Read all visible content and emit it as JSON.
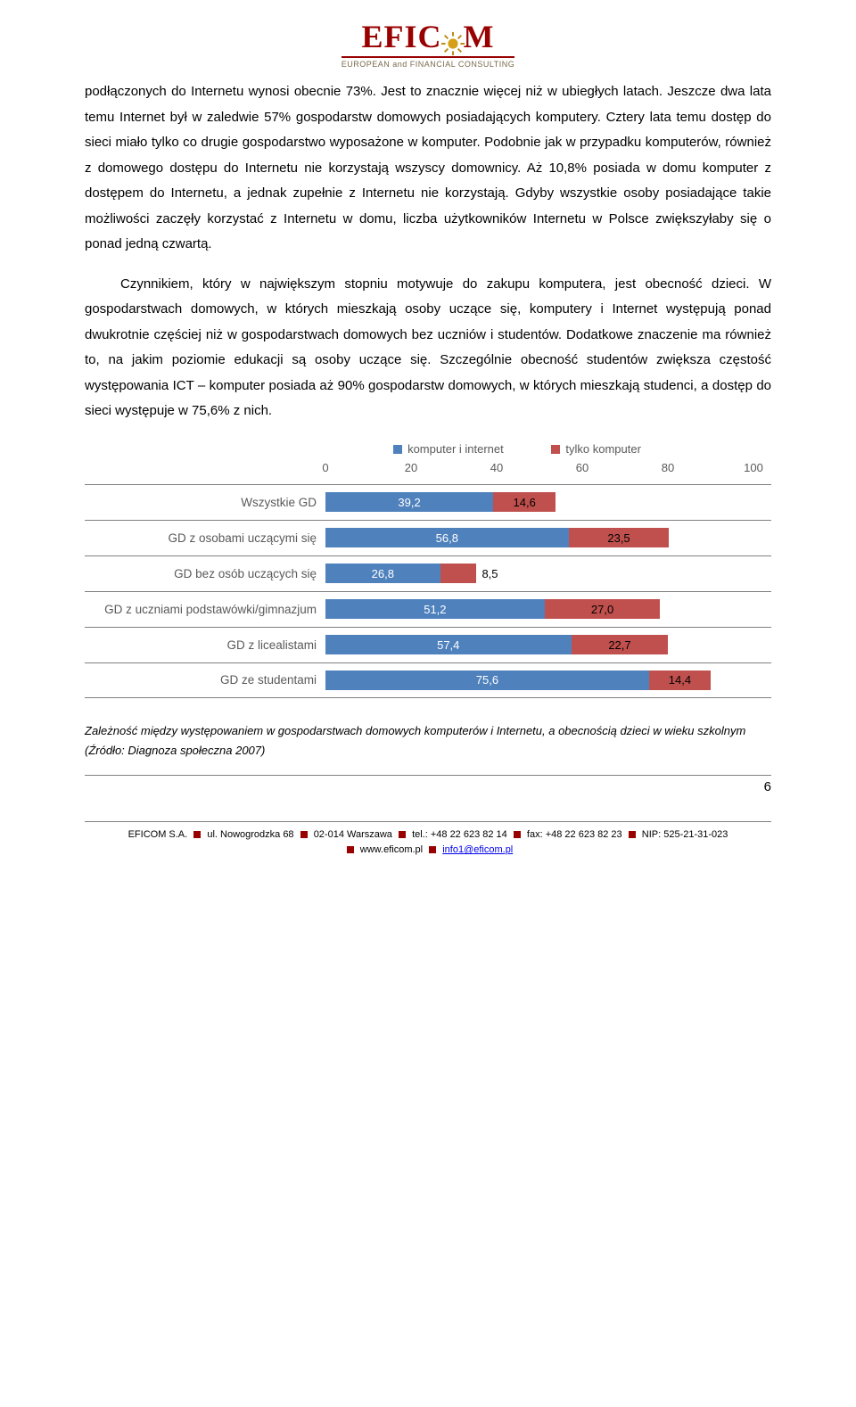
{
  "logo": {
    "name_left": "EFIC",
    "name_right": "M",
    "subtitle": "EUROPEAN and FINANCIAL CONSULTING",
    "red": "#990000",
    "sun_outer": "#d4a017",
    "sun_rays": "#b8860b"
  },
  "paragraphs": {
    "p1": "podłączonych do Internetu wynosi obecnie 73%. Jest to znacznie więcej niż w ubiegłych latach. Jeszcze dwa lata temu Internet był w zaledwie 57% gospodarstw domowych posiadających komputery. Cztery lata temu dostęp do sieci miało tylko co drugie gospodarstwo wyposażone w komputer. Podobnie jak w przypadku komputerów, również z domowego dostępu do Internetu nie korzystają wszyscy domownicy. Aż 10,8% posiada w domu komputer z dostępem do Internetu, a jednak zupełnie z Internetu nie korzystają. Gdyby wszystkie osoby posiadające takie możliwości zaczęły korzystać z Internetu w domu, liczba użytkowników Internetu w Polsce zwiększyłaby się o ponad jedną czwartą.",
    "p2": "Czynnikiem, który w największym stopniu motywuje do zakupu komputera, jest obecność dzieci. W gospodarstwach domowych, w których mieszkają osoby uczące się, komputery i Internet występują ponad dwukrotnie częściej niż w gospodarstwach domowych bez uczniów i studentów. Dodatkowe znaczenie ma również to, na jakim poziomie edukacji są osoby uczące się. Szczególnie obecność studentów zwiększa częstość występowania ICT – komputer posiada aż 90% gospodarstw domowych, w których mieszkają studenci, a dostęp do sieci występuje w 75,6% z nich."
  },
  "chart": {
    "type": "stacked-horizontal-bar",
    "legend": [
      {
        "label": "komputer i internet",
        "color": "#4f81bd"
      },
      {
        "label": "tylko komputer",
        "color": "#c0504d"
      }
    ],
    "x_ticks": [
      0,
      20,
      40,
      60,
      80,
      100
    ],
    "xmax": 100,
    "series1_color": "#4f81bd",
    "series2_color": "#c0504d",
    "label_color": "#595959",
    "row_border": "#808080",
    "categories": [
      {
        "label": "Wszystkie GD",
        "v1": 39.2,
        "v2": 14.6,
        "t1": "39,2",
        "t2": "14,6"
      },
      {
        "label": "GD z osobami uczącymi się",
        "v1": 56.8,
        "v2": 23.5,
        "t1": "56,8",
        "t2": "23,5"
      },
      {
        "label": "GD bez osób uczących się",
        "v1": 26.8,
        "v2": 8.5,
        "t1": "26,8",
        "t2": "8,5"
      },
      {
        "label": "GD z uczniami podstawówki/gimnazjum",
        "v1": 51.2,
        "v2": 27.0,
        "t1": "51,2",
        "t2": "27,0"
      },
      {
        "label": "GD z licealistami",
        "v1": 57.4,
        "v2": 22.7,
        "t1": "57,4",
        "t2": "22,7"
      },
      {
        "label": "GD ze studentami",
        "v1": 75.6,
        "v2": 14.4,
        "t1": "75,6",
        "t2": "14,4"
      }
    ]
  },
  "caption": "Zależność między występowaniem w gospodarstwach domowych komputerów i Internetu, a obecnością dzieci w wieku szkolnym (Źródło: Diagnoza społeczna 2007)",
  "page_number": "6",
  "footer": {
    "company": "EFICOM S.A.",
    "address": "ul. Nowogrodzka 68",
    "postal": "02-014 Warszawa",
    "tel": "tel.: +48 22 623 82 14",
    "fax": "fax: +48 22 623 82 23",
    "nip": "NIP: 525-21-31-023",
    "web": "www.eficom.pl",
    "email": "info1@eficom.pl"
  }
}
